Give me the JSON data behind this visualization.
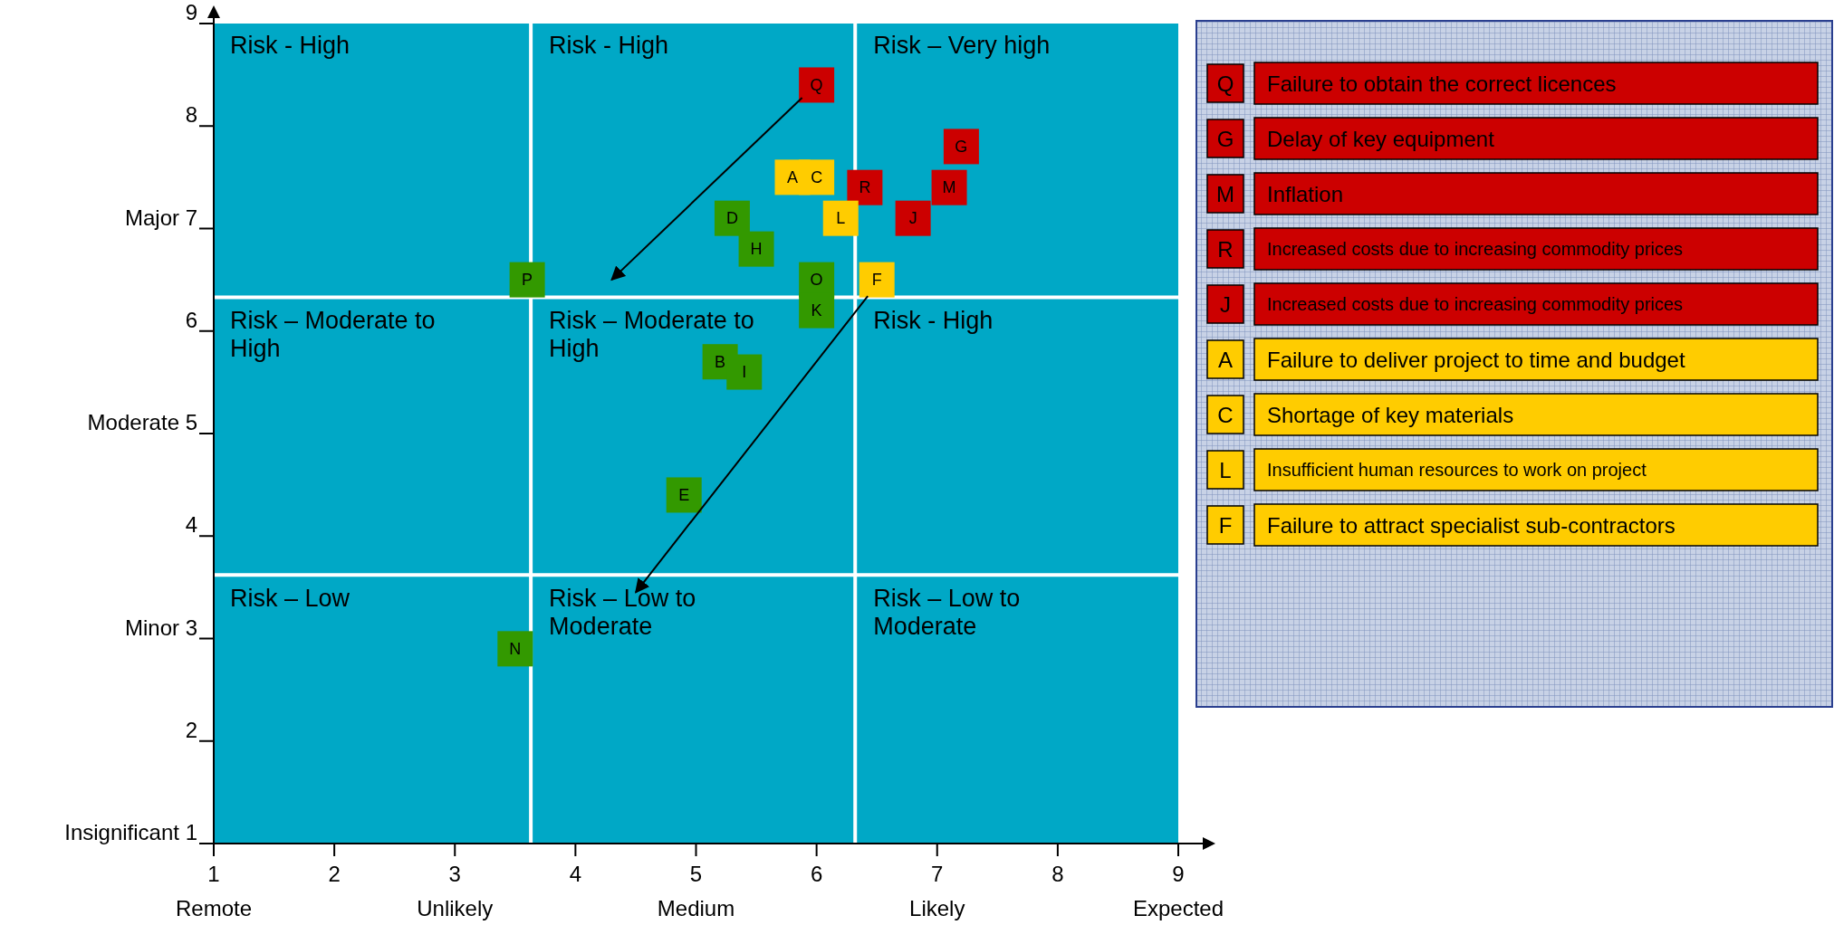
{
  "chart_data": {
    "type": "scatter",
    "marker": "square",
    "legend": "right",
    "xlim": [
      1,
      9
    ],
    "ylim": [
      1,
      9
    ],
    "xticks": [
      {
        "value": 1,
        "label": "1\nRemote"
      },
      2,
      {
        "value": 3,
        "label": "3\nUnlikely"
      },
      4,
      {
        "value": 5,
        "label": "5\nMedium"
      },
      6,
      {
        "value": 7,
        "label": "7\nLikely"
      },
      8,
      {
        "value": 9,
        "label": "9\nExpected"
      }
    ],
    "yticks": [
      {
        "value": 1,
        "label": "Insignificant 1"
      },
      2,
      {
        "value": 3,
        "label": "Minor 3"
      },
      4,
      {
        "value": 5,
        "label": "Moderate 5"
      },
      6,
      {
        "value": 7,
        "label": "Major 7"
      },
      8,
      9
    ],
    "ref_lines": [
      {
        "axis": "x",
        "value": 3.63,
        "color": "#ffffff"
      },
      {
        "axis": "x",
        "value": 6.32,
        "color": "#ffffff"
      },
      {
        "axis": "y",
        "value": 3.62,
        "color": "#ffffff"
      },
      {
        "axis": "y",
        "value": 6.33,
        "color": "#ffffff"
      }
    ],
    "annotations": [
      "Risk - High",
      "Risk - High",
      "Risk – Very high",
      "Risk – Moderate to High",
      "Risk – Moderate to High",
      "Risk - High",
      "Risk – Low",
      "Risk – Low to Moderate",
      "Risk – Low to Moderate"
    ],
    "series": [
      {
        "name": "Failure to obtain the correct licences",
        "color": "#cc0000",
        "x": [
          6.0
        ],
        "values": [
          8.4
        ],
        "value_labels": [
          "Q"
        ]
      },
      {
        "name": "Delay of key equipment",
        "color": "#cc0000",
        "x": [
          7.2
        ],
        "values": [
          7.8
        ],
        "value_labels": [
          "G"
        ]
      },
      {
        "name": "Inflation",
        "color": "#cc0000",
        "x": [
          7.1
        ],
        "values": [
          7.4
        ],
        "value_labels": [
          "M"
        ]
      },
      {
        "name": "Increased costs due to increasing commodity prices",
        "color": "#cc0000",
        "x": [
          6.4
        ],
        "values": [
          7.4
        ],
        "value_labels": [
          "R"
        ]
      },
      {
        "name": "Increased costs due to increasing commodity prices",
        "color": "#cc0000",
        "x": [
          6.8
        ],
        "values": [
          7.1
        ],
        "value_labels": [
          "J"
        ]
      },
      {
        "name": "Failure to deliver project to time and budget",
        "color": "#ffcc00",
        "x": [
          5.8
        ],
        "values": [
          7.5
        ],
        "value_labels": [
          "A"
        ]
      },
      {
        "name": "Shortage of key materials",
        "color": "#ffcc00",
        "x": [
          6.0
        ],
        "values": [
          7.5
        ],
        "value_labels": [
          "C"
        ]
      },
      {
        "name": "Insufficient human resources to work on project",
        "color": "#ffcc00",
        "x": [
          6.2
        ],
        "values": [
          7.1
        ],
        "value_labels": [
          "L"
        ]
      },
      {
        "name": "Failure to attract specialist sub-contractors",
        "color": "#ffcc00",
        "x": [
          6.5
        ],
        "values": [
          6.5
        ],
        "value_labels": [
          "F"
        ]
      },
      {
        "color": "#339900",
        "x": [
          3.6,
          5.3,
          5.5,
          6.0,
          6.0,
          5.2,
          5.4,
          4.9,
          3.5
        ],
        "values": [
          6.5,
          7.1,
          6.8,
          6.5,
          6.2,
          5.7,
          5.6,
          4.4,
          2.9
        ],
        "value_labels": [
          "P",
          "D",
          "H",
          "O",
          "K",
          "B",
          "I",
          "E",
          "N"
        ]
      }
    ]
  }
}
